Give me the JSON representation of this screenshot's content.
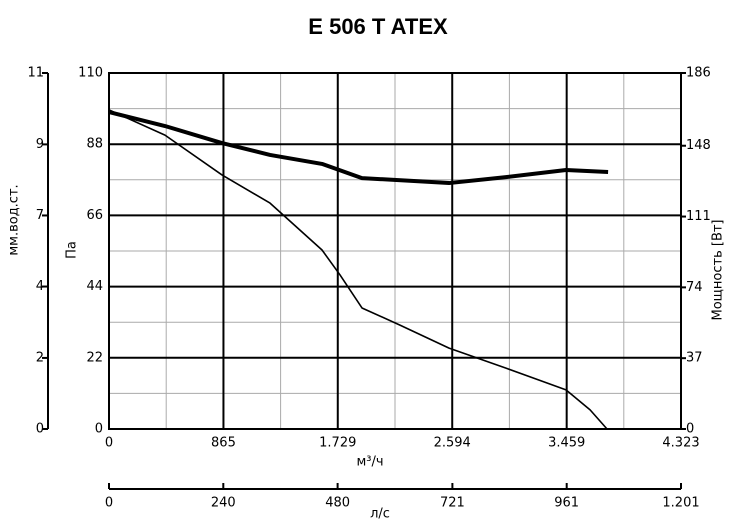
{
  "chart_data": {
    "type": "line",
    "title": "E 506 T ATEX",
    "xlabel": "м³/ч",
    "ylabel": "Па",
    "y2label": "Мощность [Вт]",
    "y3label": "мм.вод.ст.",
    "x2label": "л/с",
    "xlim": [
      0,
      4323
    ],
    "xticks": [
      0,
      865,
      {
        "value": 1729,
        "label": "1.729"
      },
      {
        "value": 2594,
        "label": "2.594"
      },
      {
        "value": 3459,
        "label": "3.459"
      },
      {
        "value": 4323,
        "label": "4.323"
      }
    ],
    "ylim": [
      0,
      110
    ],
    "yticks": [
      0,
      22,
      44,
      66,
      88,
      110
    ],
    "y2lim": [
      0,
      186
    ],
    "y2ticks": [
      0,
      37,
      74,
      111,
      148,
      186
    ],
    "y3lim": [
      0,
      11.22
    ],
    "y3ticks": [
      {
        "value": 0,
        "label": "0"
      },
      {
        "value": 2.24,
        "label": "2"
      },
      {
        "value": 4.49,
        "label": "4"
      },
      {
        "value": 6.73,
        "label": "7"
      },
      {
        "value": 8.97,
        "label": "9"
      },
      {
        "value": 11.22,
        "label": "11"
      }
    ],
    "x2lim": [
      0,
      1201
    ],
    "x2ticks": [
      0,
      240,
      480,
      721,
      961,
      {
        "value": 1201,
        "label": "1.201"
      }
    ],
    "grid": true,
    "series": [
      {
        "axis": "y",
        "color": "#000000",
        "x": [
          0,
          423,
          854,
          1217,
          1610,
          1746,
          1912,
          2199,
          2570,
          3000,
          3454,
          3636,
          3764
        ],
        "values": [
          98.6,
          90.8,
          78.5,
          69.8,
          55.3,
          47.6,
          37.4,
          32.1,
          25.0,
          18.8,
          12.1,
          5.9,
          0
        ]
      },
      {
        "axis": "y2",
        "color": "#000000",
        "x": [
          0,
          423,
          854,
          1217,
          1610,
          1912,
          2570,
          3000,
          3454,
          3772
        ],
        "values": [
          165.6,
          158.3,
          149.4,
          143.2,
          138.5,
          131.1,
          128.5,
          131.6,
          135.3,
          134.3
        ]
      }
    ]
  }
}
